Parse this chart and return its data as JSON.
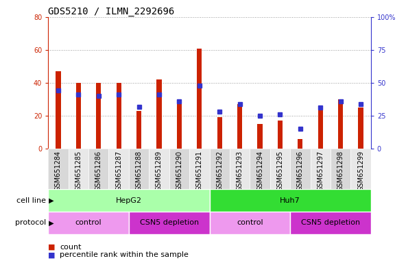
{
  "title": "GDS5210 / ILMN_2292696",
  "samples": [
    "GSM651284",
    "GSM651285",
    "GSM651286",
    "GSM651287",
    "GSM651288",
    "GSM651289",
    "GSM651290",
    "GSM651291",
    "GSM651292",
    "GSM651293",
    "GSM651294",
    "GSM651295",
    "GSM651296",
    "GSM651297",
    "GSM651298",
    "GSM651299"
  ],
  "counts": [
    47,
    40,
    40,
    40,
    23,
    42,
    29,
    61,
    19,
    27,
    15,
    17,
    6,
    24,
    30,
    25
  ],
  "percentiles": [
    44,
    41,
    40,
    41,
    32,
    41,
    36,
    48,
    28,
    34,
    25,
    26,
    15,
    31,
    36,
    34
  ],
  "bar_color": "#cc2200",
  "dot_color": "#3333cc",
  "left_ylim": [
    0,
    80
  ],
  "right_ylim": [
    0,
    100
  ],
  "left_yticks": [
    0,
    20,
    40,
    60,
    80
  ],
  "right_yticks": [
    0,
    25,
    50,
    75,
    100
  ],
  "right_yticklabels": [
    "0",
    "25",
    "50",
    "75",
    "100%"
  ],
  "cell_line_groups": [
    {
      "label": "HepG2",
      "start": 0,
      "end": 8,
      "color": "#aaffaa"
    },
    {
      "label": "Huh7",
      "start": 8,
      "end": 16,
      "color": "#33dd33"
    }
  ],
  "protocol_groups": [
    {
      "label": "control",
      "start": 0,
      "end": 4,
      "color": "#ee99ee"
    },
    {
      "label": "CSN5 depletion",
      "start": 4,
      "end": 8,
      "color": "#cc33cc"
    },
    {
      "label": "control",
      "start": 8,
      "end": 12,
      "color": "#ee99ee"
    },
    {
      "label": "CSN5 depletion",
      "start": 12,
      "end": 16,
      "color": "#cc33cc"
    }
  ],
  "bar_width": 0.25,
  "grid_color": "#999999",
  "bg_color": "#ffffff",
  "plot_bg_color": "#ffffff",
  "tick_bg_color": "#cccccc",
  "cell_line_label": "cell line",
  "protocol_label": "protocol",
  "legend_count_label": "count",
  "legend_pct_label": "percentile rank within the sample",
  "title_fontsize": 10,
  "label_fontsize": 8,
  "tick_fontsize": 7,
  "annot_fontsize": 8
}
